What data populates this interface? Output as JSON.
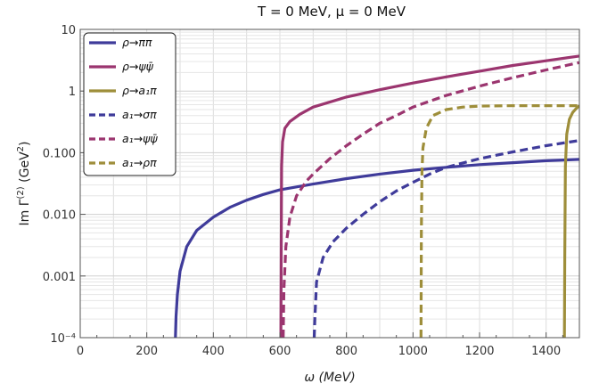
{
  "chart_data": {
    "type": "line",
    "title": "T = 0 MeV, μ = 0 MeV",
    "xlabel": "ω (MeV)",
    "ylabel": "Im Γ(2) (GeV²)",
    "xlim": [
      0,
      1500
    ],
    "ylim": [
      0.0001,
      10
    ],
    "y_scale": "log",
    "grid": true,
    "x_ticks": [
      0,
      200,
      400,
      600,
      800,
      1000,
      1200,
      1400
    ],
    "y_ticks": [
      {
        "value": 0.0001,
        "label": "10⁻⁴"
      },
      {
        "value": 0.001,
        "label": "0.001"
      },
      {
        "value": 0.01,
        "label": "0.010"
      },
      {
        "value": 0.1,
        "label": "0.100"
      },
      {
        "value": 1,
        "label": "1"
      },
      {
        "value": 10,
        "label": "10"
      }
    ],
    "legend_position": "top-left",
    "colors": {
      "blue": "#3f3b9a",
      "magenta": "#9b356f",
      "olive": "#9e8e3a"
    },
    "series": [
      {
        "name": "ρ→ππ",
        "color": "#3f3b9a",
        "dash": "solid",
        "points": [
          [
            286,
            0.0001
          ],
          [
            288,
            0.00022
          ],
          [
            292,
            0.0005
          ],
          [
            300,
            0.0012
          ],
          [
            320,
            0.003
          ],
          [
            350,
            0.0055
          ],
          [
            400,
            0.009
          ],
          [
            450,
            0.013
          ],
          [
            500,
            0.017
          ],
          [
            550,
            0.021
          ],
          [
            600,
            0.025
          ],
          [
            700,
            0.031
          ],
          [
            800,
            0.038
          ],
          [
            900,
            0.045
          ],
          [
            1000,
            0.052
          ],
          [
            1100,
            0.058
          ],
          [
            1200,
            0.064
          ],
          [
            1300,
            0.069
          ],
          [
            1400,
            0.074
          ],
          [
            1500,
            0.078
          ]
        ]
      },
      {
        "name": "ρ→ψψ̄",
        "color": "#9b356f",
        "dash": "solid",
        "points": [
          [
            603,
            0.0001
          ],
          [
            604,
            0.003
          ],
          [
            605,
            0.06
          ],
          [
            608,
            0.15
          ],
          [
            615,
            0.25
          ],
          [
            630,
            0.32
          ],
          [
            660,
            0.42
          ],
          [
            700,
            0.55
          ],
          [
            800,
            0.8
          ],
          [
            900,
            1.05
          ],
          [
            1000,
            1.35
          ],
          [
            1100,
            1.7
          ],
          [
            1200,
            2.1
          ],
          [
            1300,
            2.6
          ],
          [
            1400,
            3.1
          ],
          [
            1500,
            3.7
          ]
        ]
      },
      {
        "name": "ρ→a₁π",
        "color": "#9e8e3a",
        "dash": "solid",
        "points": [
          [
            1455,
            0.0001
          ],
          [
            1456,
            0.002
          ],
          [
            1458,
            0.06
          ],
          [
            1462,
            0.2
          ],
          [
            1470,
            0.35
          ],
          [
            1480,
            0.45
          ],
          [
            1490,
            0.52
          ],
          [
            1500,
            0.58
          ]
        ]
      },
      {
        "name": "a₁→σπ",
        "color": "#3f3b9a",
        "dash": "dashed",
        "points": [
          [
            703,
            0.0001
          ],
          [
            705,
            0.0002
          ],
          [
            710,
            0.0008
          ],
          [
            730,
            0.002
          ],
          [
            760,
            0.0036
          ],
          [
            800,
            0.006
          ],
          [
            850,
            0.01
          ],
          [
            900,
            0.016
          ],
          [
            950,
            0.024
          ],
          [
            1000,
            0.033
          ],
          [
            1050,
            0.045
          ],
          [
            1100,
            0.058
          ],
          [
            1200,
            0.08
          ],
          [
            1300,
            0.103
          ],
          [
            1400,
            0.13
          ],
          [
            1500,
            0.158
          ]
        ]
      },
      {
        "name": "a₁→ψψ̄",
        "color": "#9b356f",
        "dash": "dashed",
        "points": [
          [
            610,
            0.0001
          ],
          [
            612,
            0.0006
          ],
          [
            618,
            0.003
          ],
          [
            630,
            0.009
          ],
          [
            650,
            0.02
          ],
          [
            680,
            0.035
          ],
          [
            700,
            0.045
          ],
          [
            750,
            0.08
          ],
          [
            800,
            0.13
          ],
          [
            850,
            0.2
          ],
          [
            900,
            0.3
          ],
          [
            950,
            0.4
          ],
          [
            1000,
            0.55
          ],
          [
            1100,
            0.85
          ],
          [
            1200,
            1.2
          ],
          [
            1300,
            1.65
          ],
          [
            1400,
            2.2
          ],
          [
            1500,
            2.9
          ]
        ]
      },
      {
        "name": "a₁→ρπ",
        "color": "#9e8e3a",
        "dash": "dashed",
        "points": [
          [
            1024,
            0.0001
          ],
          [
            1025,
            0.005
          ],
          [
            1027,
            0.05
          ],
          [
            1030,
            0.12
          ],
          [
            1040,
            0.25
          ],
          [
            1060,
            0.4
          ],
          [
            1100,
            0.5
          ],
          [
            1150,
            0.55
          ],
          [
            1200,
            0.57
          ],
          [
            1300,
            0.58
          ],
          [
            1400,
            0.58
          ],
          [
            1500,
            0.58
          ]
        ]
      }
    ]
  }
}
